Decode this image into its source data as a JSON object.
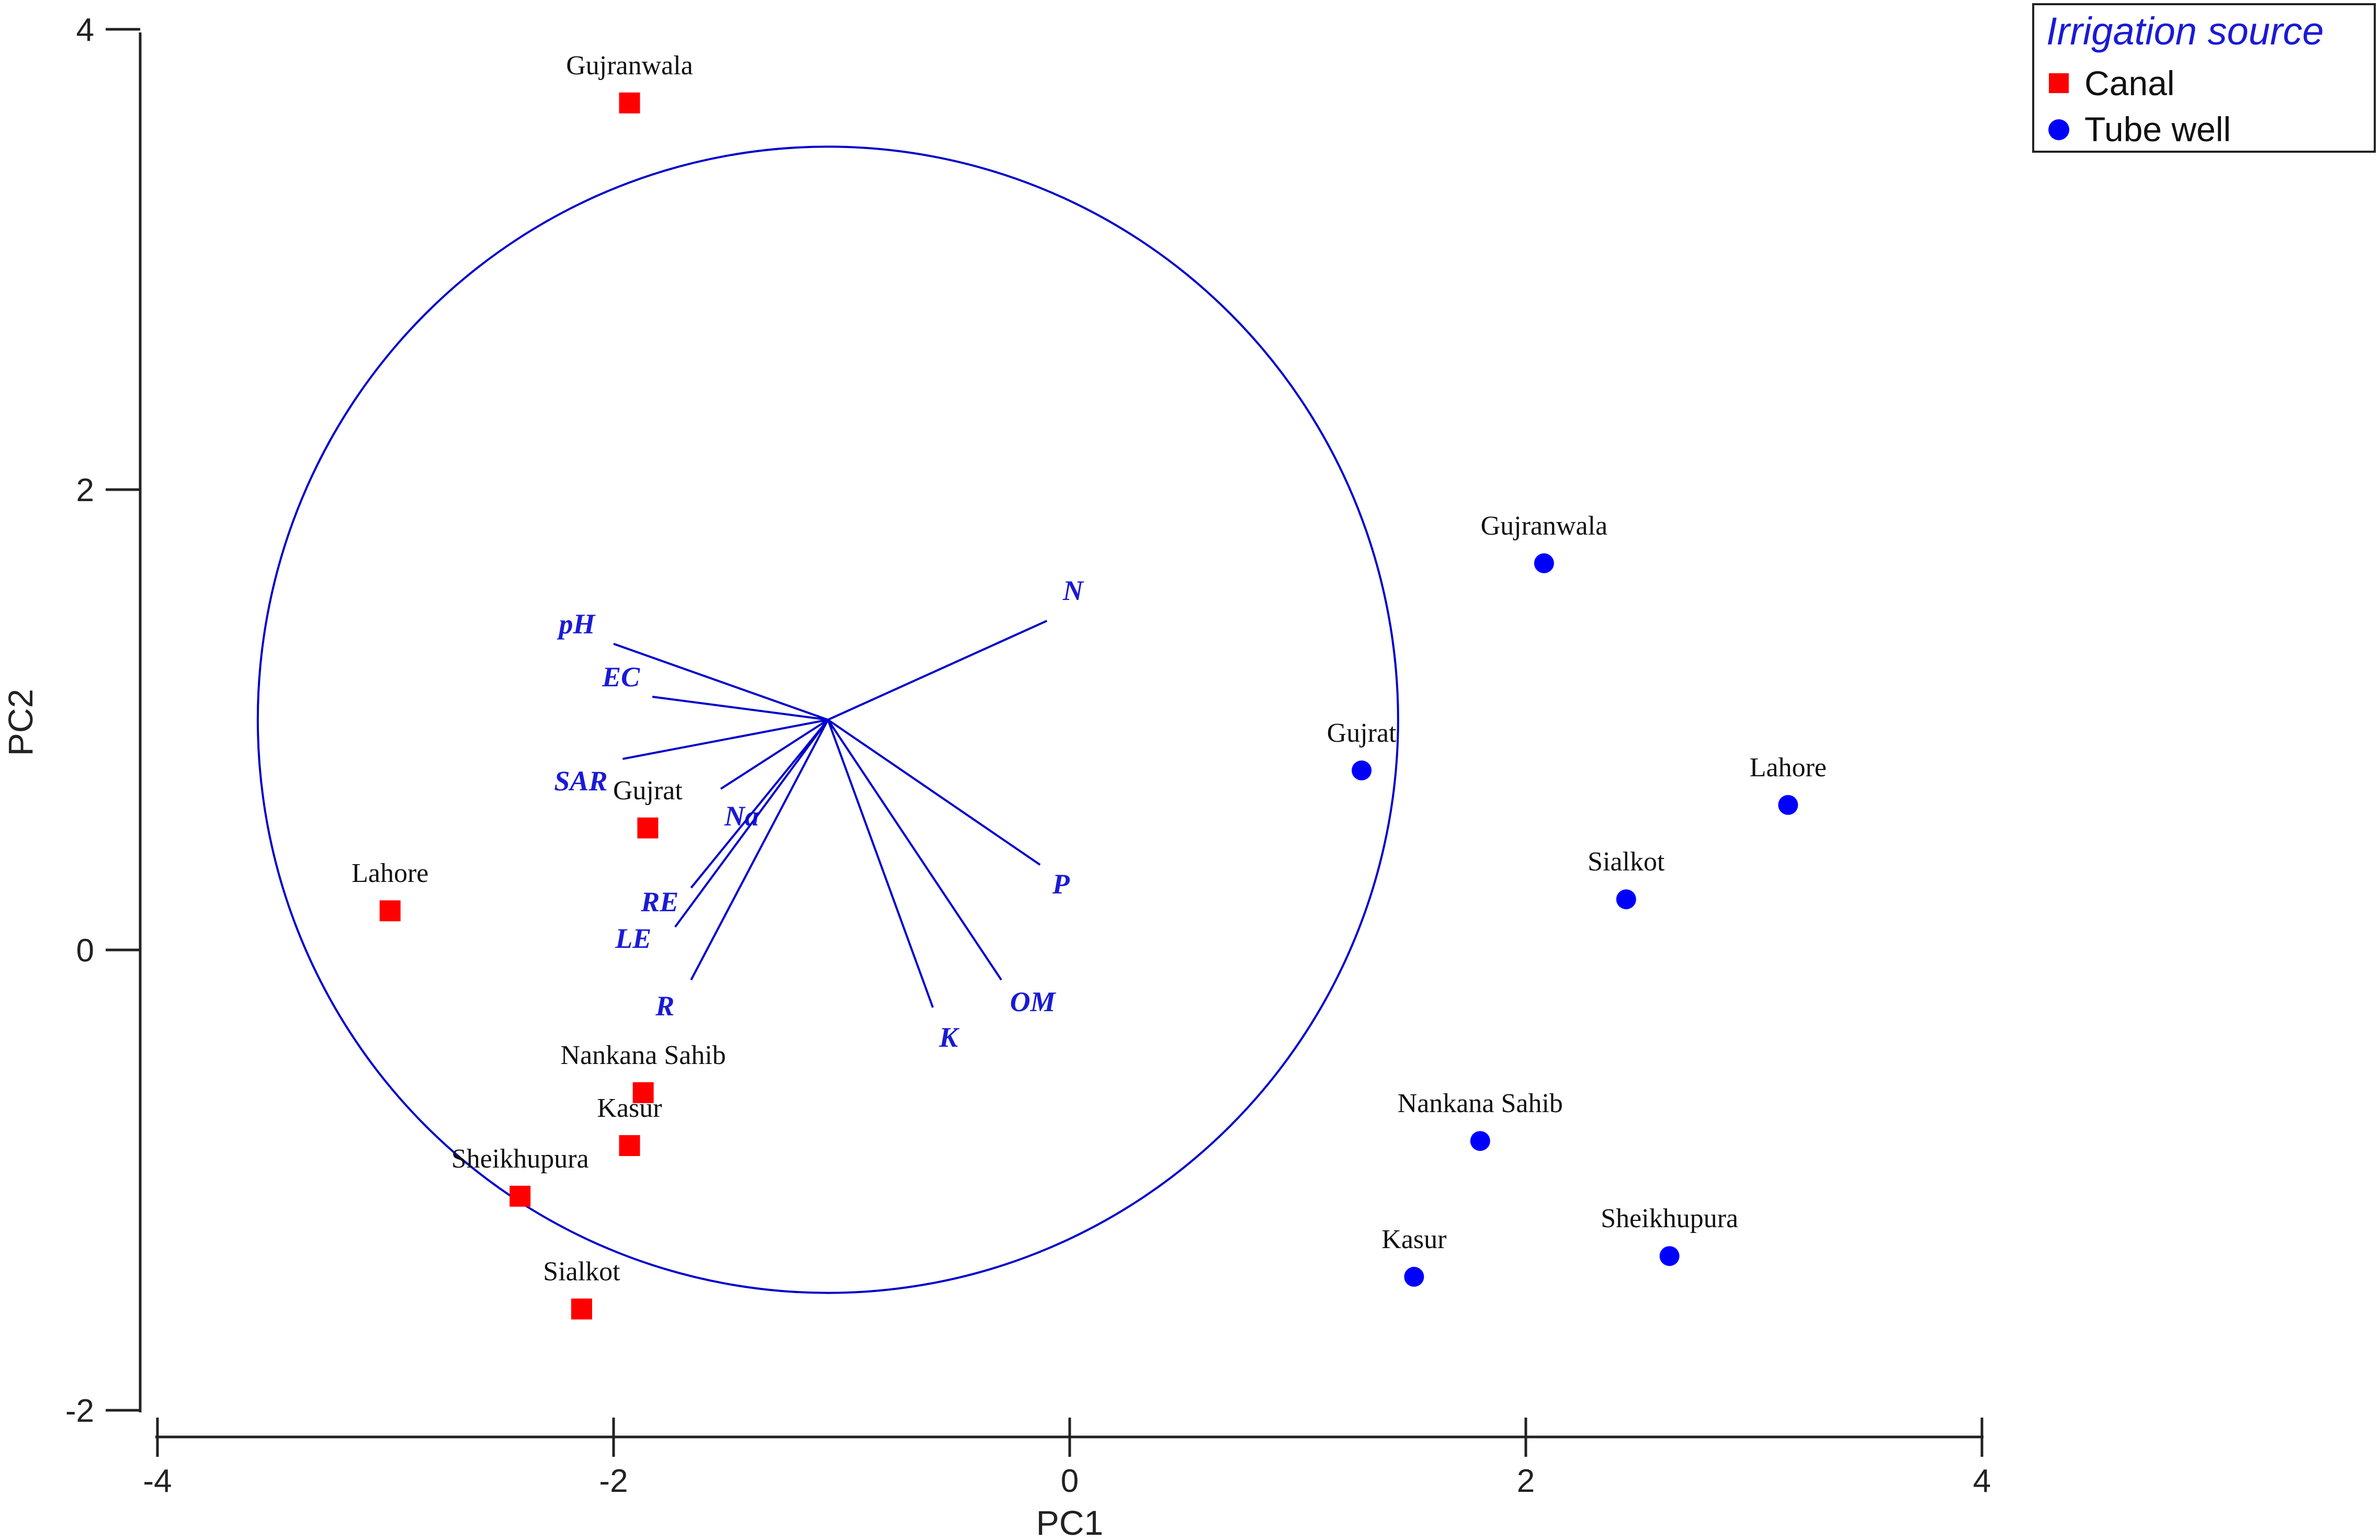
{
  "chart_data": {
    "type": "scatter",
    "xlabel": "PC1",
    "ylabel": "PC2",
    "xlim": [
      -4,
      4
    ],
    "ylim": [
      -2,
      4
    ],
    "x_ticks": [
      "-4",
      "-2",
      "0",
      "2",
      "4"
    ],
    "y_ticks": [
      "-2",
      "0",
      "2",
      "4"
    ],
    "legend": {
      "title": "Irrigation source",
      "position": "top-right",
      "entries": [
        {
          "label": "Canal",
          "color": "#ff0000",
          "marker": "square"
        },
        {
          "label": "Tube well",
          "color": "#0000ff",
          "marker": "circle"
        }
      ]
    },
    "series": [
      {
        "name": "Canal",
        "color": "#ff0000",
        "marker": "square",
        "points": [
          {
            "label": "Gujranwala",
            "x": -1.93,
            "y": 3.68
          },
          {
            "label": "Gujrat",
            "x": -1.85,
            "y": 0.53
          },
          {
            "label": "Lahore",
            "x": -2.98,
            "y": 0.17
          },
          {
            "label": "Nankana Sahib",
            "x": -1.87,
            "y": -0.62
          },
          {
            "label": "Kasur",
            "x": -1.93,
            "y": -0.85
          },
          {
            "label": "Sheikhupura",
            "x": -2.41,
            "y": -1.07
          },
          {
            "label": "Sialkot",
            "x": -2.14,
            "y": -1.56
          }
        ]
      },
      {
        "name": "Tube well",
        "color": "#0000ff",
        "marker": "circle",
        "points": [
          {
            "label": "Gujranwala",
            "x": 2.08,
            "y": 1.68
          },
          {
            "label": "Gujrat",
            "x": 1.28,
            "y": 0.78
          },
          {
            "label": "Lahore",
            "x": 3.15,
            "y": 0.63
          },
          {
            "label": "Sialkot",
            "x": 2.44,
            "y": 0.22
          },
          {
            "label": "Nankana Sahib",
            "x": 1.8,
            "y": -0.83
          },
          {
            "label": "Kasur",
            "x": 1.51,
            "y": -1.42
          },
          {
            "label": "Sheikhupura",
            "x": 2.63,
            "y": -1.33
          }
        ]
      }
    ],
    "correlation_circle": {
      "center_x": -1.06,
      "center_y": 1.0,
      "radius_x": 2.5,
      "radius_y": 2.49,
      "color": "#0000cc"
    },
    "loading_vectors": [
      {
        "label": "pH",
        "x": -2.0,
        "y": 1.33
      },
      {
        "label": "EC",
        "x": -1.83,
        "y": 1.1
      },
      {
        "label": "SAR",
        "x": -1.96,
        "y": 0.83
      },
      {
        "label": "Na",
        "x": -1.53,
        "y": 0.7
      },
      {
        "label": "RE",
        "x": -1.66,
        "y": 0.27
      },
      {
        "label": "LE",
        "x": -1.73,
        "y": 0.1
      },
      {
        "label": "R",
        "x": -1.66,
        "y": -0.13
      },
      {
        "label": "K",
        "x": -0.6,
        "y": -0.25
      },
      {
        "label": "OM",
        "x": -0.3,
        "y": -0.13
      },
      {
        "label": "P",
        "x": -0.13,
        "y": 0.37
      },
      {
        "label": "N",
        "x": -0.1,
        "y": 1.43
      }
    ]
  }
}
